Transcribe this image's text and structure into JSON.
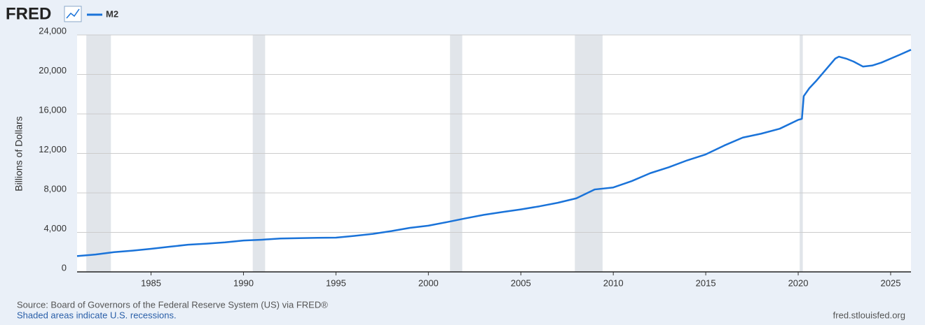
{
  "chart_data": {
    "type": "line",
    "logo": "FRED",
    "y_label": "Billions of Dollars",
    "source": "Source: Board of Governors of the Federal Reserve System (US) via FRED®",
    "note": "Shaded areas indicate U.S. recessions.",
    "site": "fred.stlouisfed.org",
    "x": [
      1981.0,
      1982.0,
      1983.0,
      1984.0,
      1985.0,
      1986.0,
      1987.0,
      1988.0,
      1989.0,
      1990.0,
      1991.0,
      1992.0,
      1993.0,
      1994.0,
      1995.0,
      1996.0,
      1997.0,
      1998.0,
      1999.0,
      2000.0,
      2001.0,
      2002.0,
      2003.0,
      2004.0,
      2005.0,
      2006.0,
      2007.0,
      2008.0,
      2009.0,
      2010.0,
      2011.0,
      2012.0,
      2013.0,
      2014.0,
      2015.0,
      2016.0,
      2017.0,
      2018.0,
      2019.0,
      2020.0,
      2020.2,
      2020.3,
      2020.6,
      2021.0,
      2021.5,
      2022.0,
      2022.2,
      2022.6,
      2023.0,
      2023.5,
      2024.0,
      2024.5,
      2025.0,
      2025.5,
      2026.1
    ],
    "series": [
      {
        "name": "M2",
        "color": "#1a73d9",
        "values": [
          1600,
          1760,
          2000,
          2150,
          2340,
          2550,
          2750,
          2860,
          2990,
          3180,
          3260,
          3380,
          3420,
          3450,
          3470,
          3650,
          3850,
          4130,
          4460,
          4680,
          5040,
          5420,
          5780,
          6060,
          6330,
          6640,
          7000,
          7450,
          8350,
          8550,
          9200,
          10000,
          10600,
          11300,
          11900,
          12800,
          13600,
          14000,
          14500,
          15400,
          15500,
          17800,
          18600,
          19400,
          20500,
          21600,
          21800,
          21600,
          21300,
          20800,
          20900,
          21200,
          21600,
          22000,
          22500
        ]
      }
    ],
    "recessions": [
      [
        1981.5,
        1982.83
      ],
      [
        1990.5,
        1991.17
      ],
      [
        2001.17,
        2001.83
      ],
      [
        2007.92,
        2009.42
      ],
      [
        2020.08,
        2020.25
      ]
    ],
    "recession_color": "#e1e5ea",
    "xlim": [
      1981.0,
      2026.1
    ],
    "ylim": [
      0,
      24000
    ],
    "xticks": [
      1985,
      1990,
      1995,
      2000,
      2005,
      2010,
      2015,
      2020,
      2025
    ],
    "yticks": [
      0,
      {
        "value": 4000,
        "label": "4,000"
      },
      {
        "value": 8000,
        "label": "8,000"
      },
      {
        "value": 12000,
        "label": "12,000"
      },
      {
        "value": 16000,
        "label": "16,000"
      },
      {
        "value": 20000,
        "label": "20,000"
      },
      {
        "value": 24000,
        "label": "24,000"
      }
    ],
    "grid": true
  }
}
